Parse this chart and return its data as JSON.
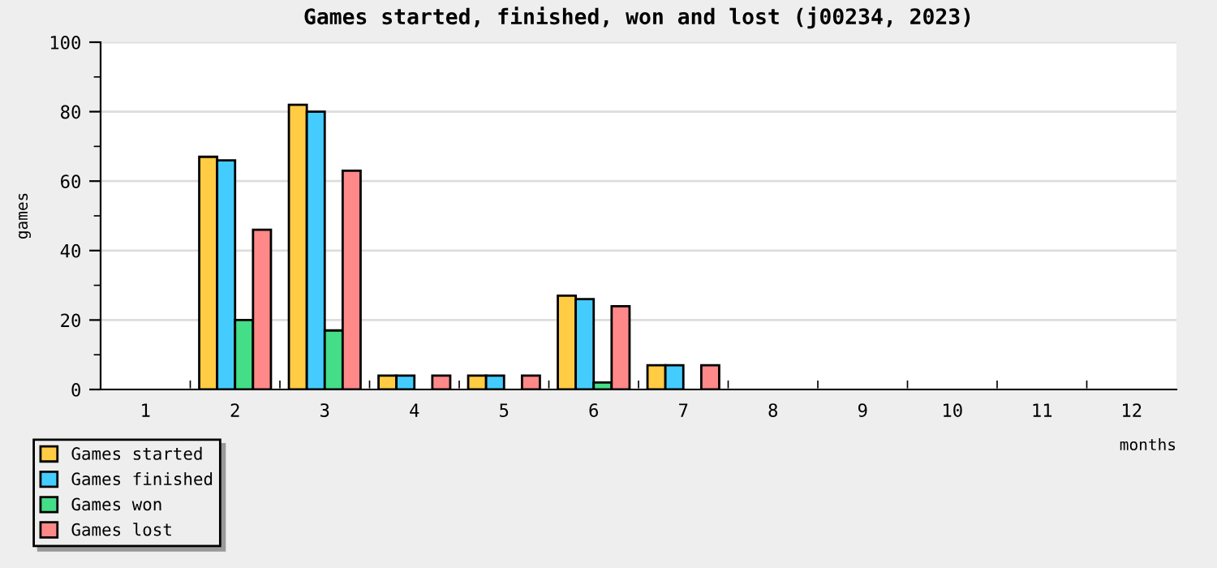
{
  "chart_data": {
    "type": "bar",
    "title": "Games started, finished, won and lost (j00234, 2023)",
    "xlabel": "months",
    "ylabel": "games",
    "categories": [
      "1",
      "2",
      "3",
      "4",
      "5",
      "6",
      "7",
      "8",
      "9",
      "10",
      "11",
      "12"
    ],
    "series": [
      {
        "name": "Games started",
        "color": "#ffcc44",
        "values": [
          0,
          67,
          82,
          4,
          4,
          27,
          7,
          0,
          0,
          0,
          0,
          0
        ]
      },
      {
        "name": "Games finished",
        "color": "#44ccff",
        "values": [
          0,
          66,
          80,
          4,
          4,
          26,
          7,
          0,
          0,
          0,
          0,
          0
        ]
      },
      {
        "name": "Games won",
        "color": "#44dd88",
        "values": [
          0,
          20,
          17,
          0,
          0,
          2,
          0,
          0,
          0,
          0,
          0,
          0
        ]
      },
      {
        "name": "Games lost",
        "color": "#ff8888",
        "values": [
          0,
          46,
          63,
          4,
          4,
          24,
          7,
          0,
          0,
          0,
          0,
          0
        ]
      }
    ],
    "ylim": [
      0,
      100
    ],
    "yticks": [
      0,
      {
        "value": 10,
        "label": null
      },
      20,
      {
        "value": 30,
        "label": null
      },
      40,
      {
        "value": 50,
        "label": null
      },
      60,
      {
        "value": 70,
        "label": null
      },
      80,
      {
        "value": 90,
        "label": null
      },
      100
    ],
    "grid": "y",
    "legend": "bottom left"
  }
}
